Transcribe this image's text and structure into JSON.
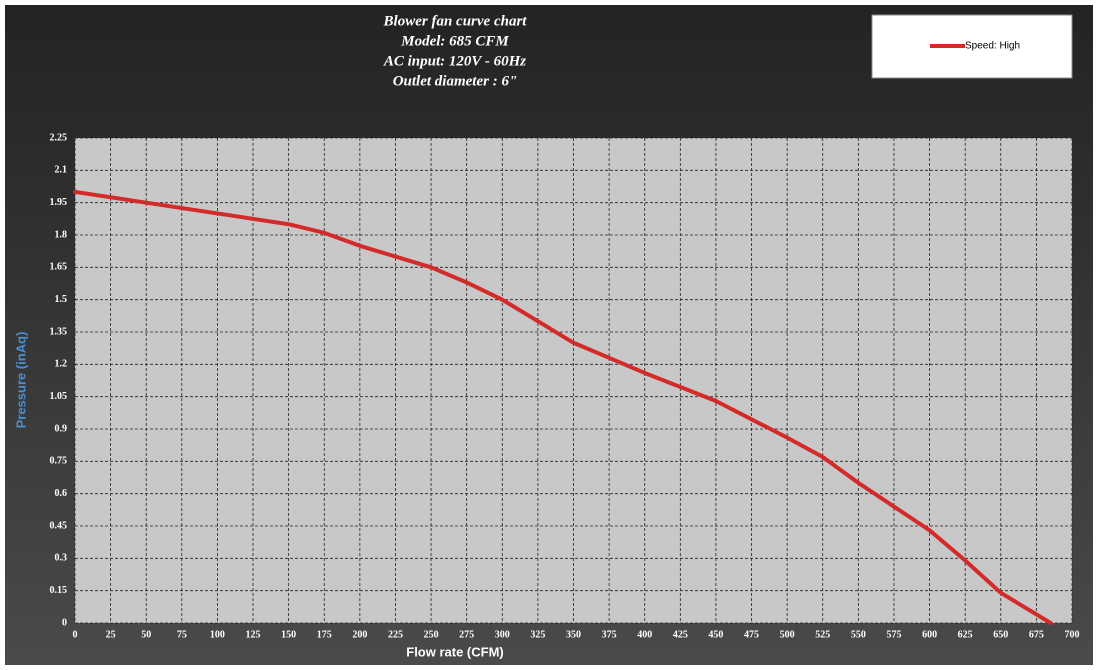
{
  "chart_data": {
    "type": "line",
    "title": [
      "Blower fan curve chart",
      "Model: 685 CFM",
      "AC input: 120V - 60Hz",
      "Outlet diameter : 6\""
    ],
    "x_label": "Flow rate (CFM)",
    "y_label": "Pressure (inAq)",
    "x": [
      0,
      50,
      100,
      150,
      175,
      200,
      250,
      275,
      300,
      325,
      350,
      400,
      450,
      500,
      525,
      550,
      600,
      625,
      650,
      685
    ],
    "series": [
      {
        "name": "Speed: High",
        "color": "#d42a2a",
        "values": [
          2.0,
          1.95,
          1.9,
          1.85,
          1.81,
          1.75,
          1.65,
          1.58,
          1.5,
          1.4,
          1.3,
          1.16,
          1.03,
          0.86,
          0.77,
          0.65,
          0.43,
          0.29,
          0.14,
          0
        ]
      }
    ],
    "xlim": [
      0,
      700
    ],
    "xticks": [
      0,
      25,
      50,
      75,
      100,
      125,
      150,
      175,
      200,
      225,
      250,
      275,
      300,
      325,
      350,
      375,
      400,
      425,
      450,
      475,
      500,
      525,
      550,
      575,
      600,
      625,
      650,
      675,
      700
    ],
    "ylim": [
      0,
      2.25
    ],
    "yticks": [
      0,
      0.15,
      0.3,
      0.45,
      0.6,
      0.75,
      0.9,
      1.05,
      1.2,
      1.35,
      1.5,
      1.65,
      1.8,
      1.95,
      2.1,
      2.25
    ],
    "grid": true,
    "legend": "upper right"
  }
}
